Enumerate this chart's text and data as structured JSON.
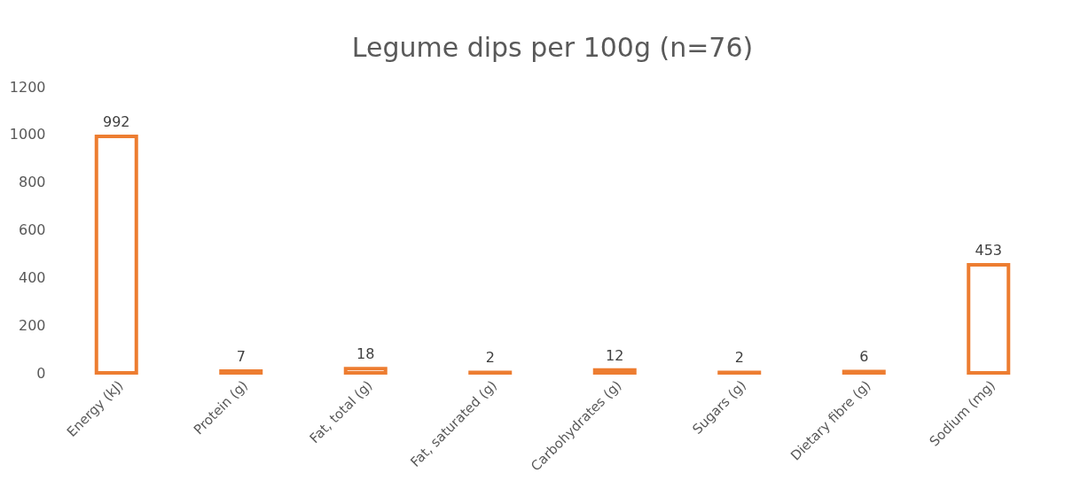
{
  "chart_data": {
    "type": "bar",
    "title": "Legume dips per 100g (n=76)",
    "categories": [
      "Energy (kJ)",
      "Protein (g)",
      "Fat, total (g)",
      "Fat, saturated (g)",
      "Carbohydrates (g)",
      "Sugars (g)",
      "Dietary fibre (g)",
      "Sodium (mg)"
    ],
    "values": [
      992,
      7,
      18,
      2,
      12,
      2,
      6,
      453
    ],
    "color": "#ed7d31",
    "ylim": [
      0,
      1200
    ],
    "yticks": [
      0,
      200,
      400,
      600,
      800,
      1000,
      1200
    ],
    "data_labels": true
  }
}
